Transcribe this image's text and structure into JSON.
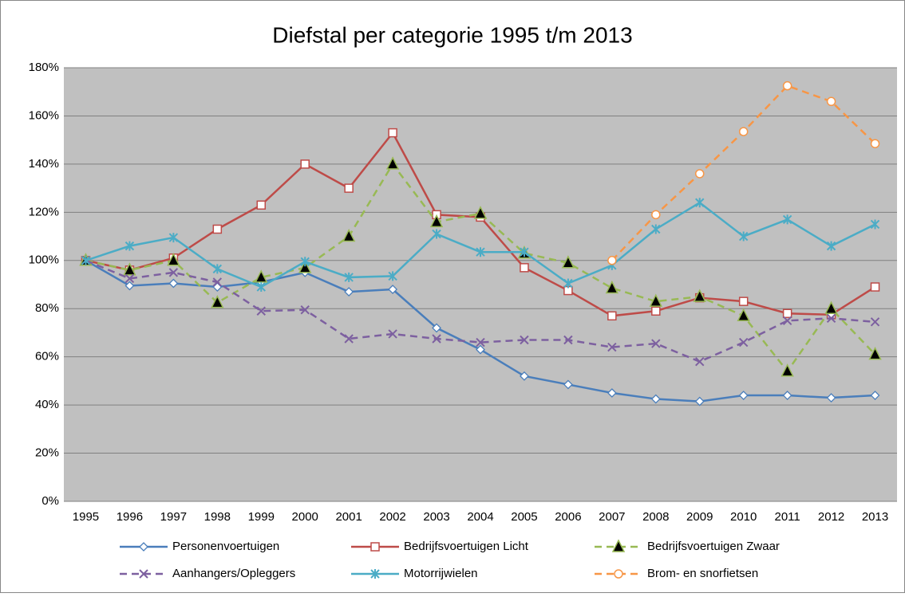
{
  "chart_data": {
    "type": "line",
    "title": "Diefstal per categorie 1995 t/m 2013",
    "categories": [
      "1995",
      "1996",
      "1997",
      "1998",
      "1999",
      "2000",
      "2001",
      "2002",
      "2003",
      "2004",
      "2005",
      "2006",
      "2007",
      "2008",
      "2009",
      "2010",
      "2011",
      "2012",
      "2013"
    ],
    "series": [
      {
        "name": "Personenvoertuigen",
        "color": "#4a7ebb",
        "dashed": false,
        "marker": "diamond",
        "values": [
          100,
          89.5,
          90.5,
          89,
          91,
          95,
          87,
          88,
          72,
          63,
          52,
          48.5,
          45,
          42.5,
          41.5,
          44,
          44,
          43,
          44
        ]
      },
      {
        "name": "Bedrijfsvoertuigen Licht",
        "color": "#be4b48",
        "dashed": false,
        "marker": "square",
        "values": [
          100,
          96,
          101,
          113,
          123,
          140,
          130,
          153,
          119,
          118,
          97,
          87.5,
          77,
          79,
          84.5,
          83,
          78,
          77.5,
          89
        ]
      },
      {
        "name": "Bedrijfsvoertuigen Zwaar",
        "color": "#98b954",
        "dashed": true,
        "marker": "triangle",
        "values": [
          100,
          96,
          100,
          82.5,
          93,
          97,
          110,
          140,
          116,
          119.5,
          103,
          99,
          88.5,
          83,
          85,
          77,
          54,
          80,
          61
        ]
      },
      {
        "name": "Aanhangers/Opleggers",
        "color": "#7d60a0",
        "dashed": true,
        "marker": "x",
        "values": [
          100,
          92.5,
          95,
          91,
          79,
          79.5,
          67.5,
          69.5,
          67.5,
          66,
          67,
          67,
          64,
          65.5,
          58,
          66,
          75,
          76,
          74.5
        ]
      },
      {
        "name": "Motorrijwielen",
        "color": "#4bacc6",
        "dashed": false,
        "marker": "star",
        "values": [
          100,
          106,
          109.5,
          96.5,
          89,
          99.5,
          93,
          93.5,
          111,
          103.5,
          103.5,
          90.5,
          98,
          113,
          124,
          110,
          117,
          106,
          115
        ]
      },
      {
        "name": "Brom- en snorfietsen",
        "color": "#f79646",
        "dashed": true,
        "marker": "circle",
        "values": [
          null,
          null,
          null,
          null,
          null,
          null,
          null,
          null,
          null,
          null,
          null,
          null,
          100,
          119,
          136,
          153.5,
          172.5,
          166,
          148.5
        ]
      }
    ],
    "ylim": [
      0,
      180
    ],
    "yticks": [
      {
        "value": 0,
        "label": "0%"
      },
      {
        "value": 20,
        "label": "20%"
      },
      {
        "value": 40,
        "label": "40%"
      },
      {
        "value": 60,
        "label": "60%"
      },
      {
        "value": 80,
        "label": "80%"
      },
      {
        "value": 100,
        "label": "100%"
      },
      {
        "value": 120,
        "label": "120%"
      },
      {
        "value": 140,
        "label": "140%"
      },
      {
        "value": 160,
        "label": "160%"
      },
      {
        "value": 180,
        "label": "180%"
      }
    ],
    "grid": true,
    "legend": "bottom"
  }
}
